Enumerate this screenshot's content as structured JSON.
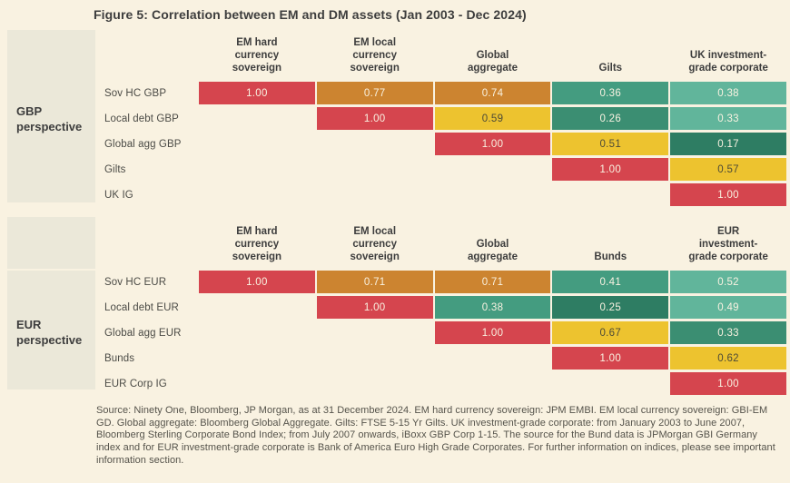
{
  "title": "Figure 5: Correlation between EM and DM assets (Jan 2003 - Dec 2024)",
  "palette": {
    "background": "#f9f2e1",
    "sidebar": "#ebe8d9",
    "red": "#d5454e",
    "orange": "#cc8430",
    "yellow": "#edc32f",
    "green1": "#61b59b",
    "green2": "#449c80",
    "green3": "#3b8e72",
    "green4": "#2e7d63",
    "light_text": "#f9f2e1",
    "dark_text": "#4c4a37"
  },
  "tables": [
    {
      "perspective": "GBP perspective",
      "columns": [
        "EM hard\ncurrency\nsovereign",
        "EM local\ncurrency\nsovereign",
        "Global\naggregate",
        "Gilts",
        "UK investment-\ngrade corporate"
      ],
      "rows": [
        {
          "label": "Sov HC GBP",
          "cells": [
            {
              "value": "1.00",
              "color": "red"
            },
            {
              "value": "0.77",
              "color": "orange"
            },
            {
              "value": "0.74",
              "color": "orange"
            },
            {
              "value": "0.36",
              "color": "green2"
            },
            {
              "value": "0.38",
              "color": "green1"
            }
          ]
        },
        {
          "label": "Local debt GBP",
          "cells": [
            null,
            {
              "value": "1.00",
              "color": "red"
            },
            {
              "value": "0.59",
              "color": "yellow"
            },
            {
              "value": "0.26",
              "color": "green3"
            },
            {
              "value": "0.33",
              "color": "green1"
            }
          ]
        },
        {
          "label": "Global agg GBP",
          "cells": [
            null,
            null,
            {
              "value": "1.00",
              "color": "red"
            },
            {
              "value": "0.51",
              "color": "yellow"
            },
            {
              "value": "0.17",
              "color": "green4"
            }
          ]
        },
        {
          "label": "Gilts",
          "cells": [
            null,
            null,
            null,
            {
              "value": "1.00",
              "color": "red"
            },
            {
              "value": "0.57",
              "color": "yellow"
            }
          ]
        },
        {
          "label": "UK IG",
          "cells": [
            null,
            null,
            null,
            null,
            {
              "value": "1.00",
              "color": "red"
            }
          ]
        }
      ]
    },
    {
      "perspective": "EUR perspective",
      "columns": [
        "EM hard\ncurrency\nsovereign",
        "EM local\ncurrency\nsovereign",
        "Global\naggregate",
        "Bunds",
        "EUR\ninvestment-\ngrade corporate"
      ],
      "rows": [
        {
          "label": "Sov HC EUR",
          "cells": [
            {
              "value": "1.00",
              "color": "red"
            },
            {
              "value": "0.71",
              "color": "orange"
            },
            {
              "value": "0.71",
              "color": "orange"
            },
            {
              "value": "0.41",
              "color": "green2"
            },
            {
              "value": "0.52",
              "color": "green1"
            }
          ]
        },
        {
          "label": "Local debt EUR",
          "cells": [
            null,
            {
              "value": "1.00",
              "color": "red"
            },
            {
              "value": "0.38",
              "color": "green2"
            },
            {
              "value": "0.25",
              "color": "green4"
            },
            {
              "value": "0.49",
              "color": "green1"
            }
          ]
        },
        {
          "label": "Global agg EUR",
          "cells": [
            null,
            null,
            {
              "value": "1.00",
              "color": "red"
            },
            {
              "value": "0.67",
              "color": "yellow"
            },
            {
              "value": "0.33",
              "color": "green3"
            }
          ]
        },
        {
          "label": "Bunds",
          "cells": [
            null,
            null,
            null,
            {
              "value": "1.00",
              "color": "red"
            },
            {
              "value": "0.62",
              "color": "yellow"
            }
          ]
        },
        {
          "label": "EUR Corp IG",
          "cells": [
            null,
            null,
            null,
            null,
            {
              "value": "1.00",
              "color": "red"
            }
          ]
        }
      ]
    }
  ],
  "chart_data": [
    {
      "type": "heatmap",
      "title": "GBP perspective",
      "columns": [
        "EM hard currency sovereign",
        "EM local currency sovereign",
        "Global aggregate",
        "Gilts",
        "UK investment-grade corporate"
      ],
      "rows": [
        "Sov HC GBP",
        "Local debt GBP",
        "Global agg GBP",
        "Gilts",
        "UK IG"
      ],
      "values": [
        [
          1.0,
          0.77,
          0.74,
          0.36,
          0.38
        ],
        [
          null,
          1.0,
          0.59,
          0.26,
          0.33
        ],
        [
          null,
          null,
          1.0,
          0.51,
          0.17
        ],
        [
          null,
          null,
          null,
          1.0,
          0.57
        ],
        [
          null,
          null,
          null,
          null,
          1.0
        ]
      ]
    },
    {
      "type": "heatmap",
      "title": "EUR perspective",
      "columns": [
        "EM hard currency sovereign",
        "EM local currency sovereign",
        "Global aggregate",
        "Bunds",
        "EUR investment-grade corporate"
      ],
      "rows": [
        "Sov HC EUR",
        "Local debt EUR",
        "Global agg EUR",
        "Bunds",
        "EUR Corp IG"
      ],
      "values": [
        [
          1.0,
          0.71,
          0.71,
          0.41,
          0.52
        ],
        [
          null,
          1.0,
          0.38,
          0.25,
          0.49
        ],
        [
          null,
          null,
          1.0,
          0.67,
          0.33
        ],
        [
          null,
          null,
          null,
          1.0,
          0.62
        ],
        [
          null,
          null,
          null,
          null,
          1.0
        ]
      ]
    }
  ],
  "source_note": "Source: Ninety One, Bloomberg, JP Morgan, as at 31 December 2024. EM hard currency sovereign: JPM EMBI. EM local currency sovereign: GBI-EM GD. Global aggregate: Bloomberg Global Aggregate. Gilts: FTSE 5-15 Yr Gilts. UK investment-grade corporate: from January 2003 to June 2007, Bloomberg Sterling Corporate Bond Index; from July 2007 onwards, iBoxx GBP Corp 1-15. The source for the Bund data is JPMorgan GBI Germany index and for EUR investment-grade corporate is Bank of America Euro High Grade Corporates.  For further information on indices, please see important information section."
}
